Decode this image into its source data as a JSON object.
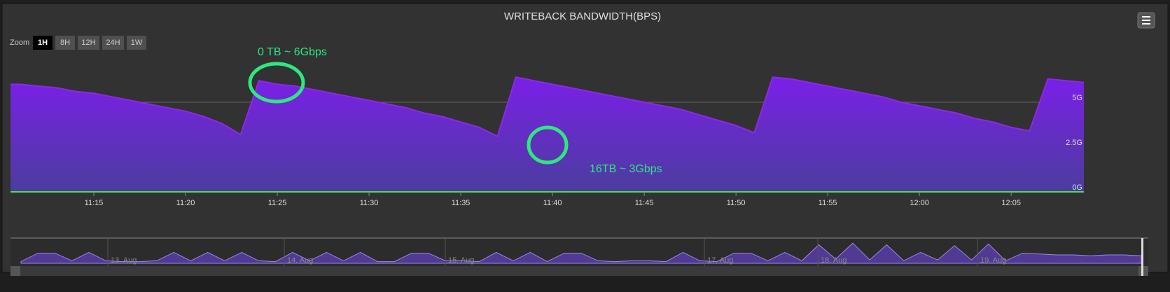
{
  "chart_data": {
    "type": "area",
    "title": "WRITEBACK BANDWIDTH(BPS)",
    "zoom": {
      "label": "Zoom",
      "buttons": [
        "1H",
        "8H",
        "12H",
        "24H",
        "1W"
      ],
      "selected": 0
    },
    "x": [
      "11:10",
      "11:11",
      "11:12",
      "11:13",
      "11:14",
      "11:15",
      "11:16",
      "11:17",
      "11:18",
      "11:19",
      "11:20",
      "11:21",
      "11:22",
      "11:23",
      "11:24",
      "11:25",
      "11:26",
      "11:27",
      "11:28",
      "11:29",
      "11:30",
      "11:31",
      "11:32",
      "11:33",
      "11:34",
      "11:35",
      "11:36",
      "11:37",
      "11:38",
      "11:39",
      "11:40",
      "11:41",
      "11:42",
      "11:43",
      "11:44",
      "11:45",
      "11:46",
      "11:47",
      "11:48",
      "11:49",
      "11:50",
      "11:51",
      "11:52",
      "11:53",
      "11:54",
      "11:55",
      "11:56",
      "11:57",
      "11:58",
      "11:59",
      "12:00",
      "12:01",
      "12:02",
      "12:03",
      "12:04",
      "12:05",
      "12:06",
      "12:07",
      "12:08",
      "12:09"
    ],
    "series": [
      {
        "color": "#8a2be2",
        "values": [
          6.0,
          6.0,
          5.9,
          5.8,
          5.6,
          5.5,
          5.3,
          5.1,
          4.9,
          4.7,
          4.5,
          4.2,
          3.8,
          3.2,
          6.2,
          6.0,
          5.9,
          5.7,
          5.5,
          5.3,
          5.1,
          4.9,
          4.7,
          4.4,
          4.2,
          3.9,
          3.6,
          3.1,
          6.4,
          6.2,
          6.0,
          5.8,
          5.6,
          5.4,
          5.2,
          5.0,
          4.8,
          4.6,
          4.3,
          4.0,
          3.7,
          3.3,
          6.4,
          6.3,
          6.1,
          5.9,
          5.7,
          5.5,
          5.3,
          5.0,
          4.8,
          4.6,
          4.4,
          4.1,
          3.9,
          3.6,
          3.4,
          6.3,
          6.2,
          6.1
        ]
      }
    ],
    "xlim": [
      "11:10",
      "12:09"
    ],
    "xticks": [
      "11:15",
      "11:20",
      "11:25",
      "11:30",
      "11:35",
      "11:40",
      "11:45",
      "11:50",
      "11:55",
      "12:00",
      "12:05"
    ],
    "ylim": [
      0,
      7.5
    ],
    "yticks": [
      {
        "value": 0,
        "label": "0G"
      },
      {
        "value": 2.5,
        "label": "2.5G"
      },
      {
        "value": 5,
        "label": "5G"
      }
    ],
    "grid": true,
    "annotations": [
      "0 TB ~ 6Gbps",
      "16TB ~ 3Gbps"
    ],
    "navigator": {
      "labels": [
        "13. Aug",
        "14. Aug",
        "15. Aug",
        "17. Aug",
        "18. Aug",
        "19. Aug"
      ],
      "values": [
        0.2,
        1.2,
        1.2,
        0.3,
        1.3,
        0.3,
        0.2,
        0.2,
        0.3,
        1.3,
        0.3,
        1.3,
        0.3,
        1.3,
        0.3,
        0.2,
        1.3,
        0.3,
        1.3,
        0.3,
        1.3,
        0.2,
        0.2,
        1.2,
        1.2,
        0.3,
        0.3,
        0.2,
        1.3,
        0.3,
        1.3,
        0.2,
        1.2,
        1.2,
        0.3,
        0.2,
        0.3,
        0.3,
        0.2,
        1.3,
        0.3,
        0.2,
        1.2,
        1.2,
        0.3,
        1.3,
        0.3,
        2.2,
        0.5,
        2.4,
        0.4,
        2.2,
        0.3,
        1.3,
        0.4,
        2.1,
        0.4,
        2.3,
        0.3,
        1.2,
        1.1,
        1.0,
        1.0,
        0.9,
        1.0,
        1.0,
        0.9
      ]
    }
  }
}
